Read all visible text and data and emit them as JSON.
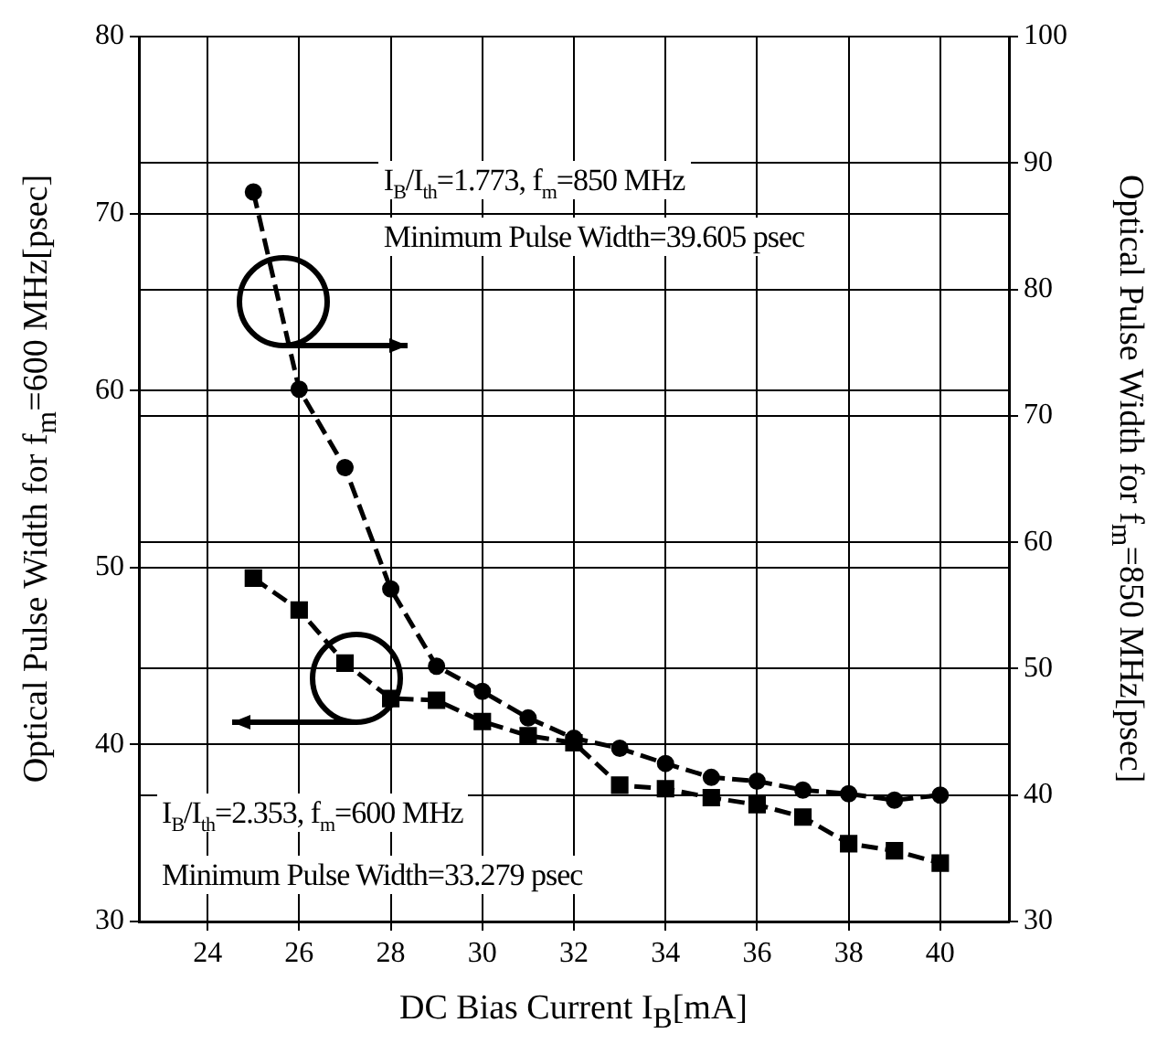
{
  "chart_data": {
    "type": "line",
    "xlabel": "DC Bias Current I$_{B}$[mA]",
    "ylabel": "Optical Pulse Width for f$_{m}$=600 MHz[psec]",
    "y2label": "Optical Pulse Width for f$_{m}$=850 MHz[psec]",
    "x": [
      25,
      26,
      27,
      28,
      29,
      30,
      31,
      32,
      33,
      34,
      35,
      36,
      37,
      38,
      39,
      40
    ],
    "series": [
      {
        "color": "#000000",
        "axis": "y2",
        "marker": "circle",
        "values": [
          87.7,
          72.1,
          65.9,
          56.3,
          50.2,
          48.2,
          46.1,
          44.5,
          43.7,
          42.5,
          41.4,
          41.1,
          40.4,
          40.1,
          39.6,
          40.0
        ]
      },
      {
        "color": "#000000",
        "marker": "square",
        "values": [
          49.4,
          47.6,
          44.6,
          42.6,
          42.5,
          41.3,
          40.5,
          40.1,
          37.7,
          37.5,
          37.0,
          36.6,
          35.9,
          34.4,
          34.0,
          33.3
        ]
      }
    ],
    "xlim": [
      22.5,
      41.5
    ],
    "xticks": [
      24,
      26,
      28,
      30,
      32,
      34,
      36,
      38,
      40
    ],
    "ylim": [
      30,
      80
    ],
    "yticks": [
      30,
      40,
      50,
      60,
      70,
      80
    ],
    "y2lim": [
      30,
      100
    ],
    "y2ticks": [
      30,
      40,
      50,
      60,
      70,
      80,
      90,
      100
    ],
    "grid": true,
    "legend": false,
    "line_style": "dashed",
    "annotations": [
      "I$_{B}$/I$_{th}$=1.773, f$_{m}$=850 MHz",
      "Minimum Pulse Width=39.605 psec",
      "I$_{B}$/I$_{th}$=2.353, f$_{m}$=600 MHz",
      "Minimum Pulse Width=33.279 psec"
    ]
  }
}
